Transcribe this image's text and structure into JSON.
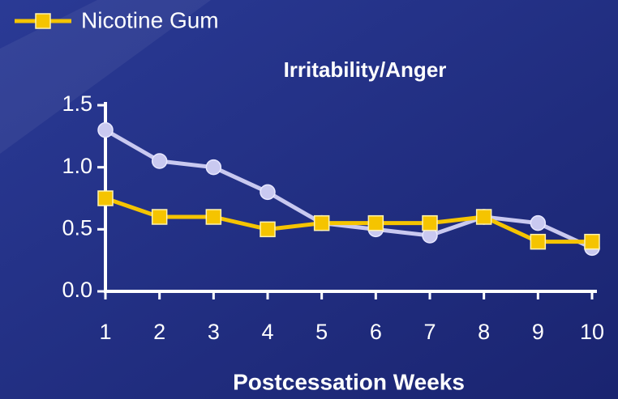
{
  "chart_data": {
    "type": "line",
    "title": "Irritability/Anger",
    "xlabel": "Postcessation Weeks",
    "x": [
      1,
      2,
      3,
      4,
      5,
      6,
      7,
      8,
      9,
      10
    ],
    "xlim": [
      1,
      10
    ],
    "xticks": [
      1,
      2,
      3,
      4,
      5,
      6,
      7,
      8,
      9,
      10
    ],
    "ylim": [
      0,
      1.5
    ],
    "yticks": [
      {
        "value": 0,
        "label": "0.0"
      },
      {
        "value": 0.5,
        "label": "0.5"
      },
      {
        "value": 1,
        "label": "1.0"
      },
      {
        "value": 1.5,
        "label": "1.5"
      }
    ],
    "legend": "top-left",
    "series": [
      {
        "color": "#c9c9f0",
        "marker": "circle",
        "values": [
          1.3,
          1.05,
          1.0,
          0.8,
          0.55,
          0.5,
          0.45,
          0.6,
          0.55,
          0.35
        ]
      },
      {
        "name": "Nicotine Gum",
        "color": "#f5c400",
        "marker": "square",
        "values": [
          0.75,
          0.6,
          0.6,
          0.5,
          0.55,
          0.55,
          0.55,
          0.6,
          0.4,
          0.4
        ]
      }
    ]
  }
}
